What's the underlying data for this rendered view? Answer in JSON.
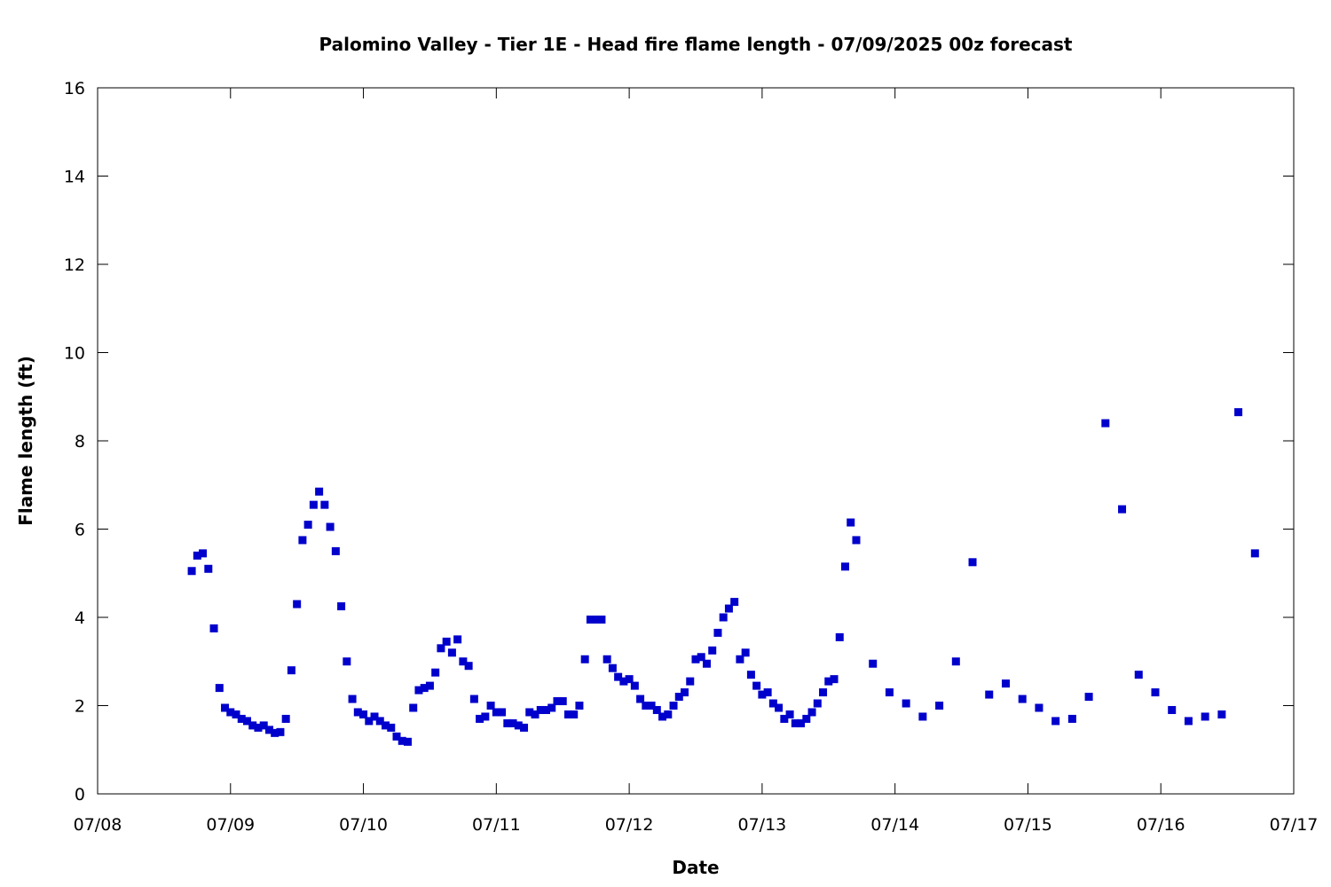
{
  "chart_data": {
    "type": "scatter",
    "title": "Palomino Valley - Tier 1E - Head fire flame length - 07/09/2025 00z forecast",
    "xlabel": "Date",
    "ylabel": "Flame length (ft)",
    "x_axis_type": "date",
    "xlim": [
      "2025-07-08 00:00",
      "2025-07-17 00:00"
    ],
    "ylim": [
      0,
      16
    ],
    "x_tick_labels": [
      "07/08",
      "07/09",
      "07/10",
      "07/11",
      "07/12",
      "07/13",
      "07/14",
      "07/15",
      "07/16",
      "07/17"
    ],
    "y_tick_labels": [
      "0",
      "2",
      "4",
      "6",
      "8",
      "10",
      "12",
      "14",
      "16"
    ],
    "grid": false,
    "legend": "none",
    "marker": "square",
    "color": "#0000CC",
    "series": [
      {
        "x": [
          "2025-07-08 17:00",
          "2025-07-08 18:00",
          "2025-07-08 19:00",
          "2025-07-08 20:00",
          "2025-07-08 21:00",
          "2025-07-08 22:00",
          "2025-07-08 23:00",
          "2025-07-09 00:00",
          "2025-07-09 01:00",
          "2025-07-09 02:00",
          "2025-07-09 03:00",
          "2025-07-09 04:00",
          "2025-07-09 05:00",
          "2025-07-09 06:00",
          "2025-07-09 07:00",
          "2025-07-09 08:00",
          "2025-07-09 09:00",
          "2025-07-09 10:00",
          "2025-07-09 11:00",
          "2025-07-09 12:00",
          "2025-07-09 13:00",
          "2025-07-09 14:00",
          "2025-07-09 15:00",
          "2025-07-09 16:00",
          "2025-07-09 17:00",
          "2025-07-09 18:00",
          "2025-07-09 19:00",
          "2025-07-09 20:00",
          "2025-07-09 21:00",
          "2025-07-09 22:00",
          "2025-07-09 23:00",
          "2025-07-10 00:00",
          "2025-07-10 01:00",
          "2025-07-10 02:00",
          "2025-07-10 03:00",
          "2025-07-10 04:00",
          "2025-07-10 05:00",
          "2025-07-10 06:00",
          "2025-07-10 07:00",
          "2025-07-10 08:00",
          "2025-07-10 09:00",
          "2025-07-10 10:00",
          "2025-07-10 11:00",
          "2025-07-10 12:00",
          "2025-07-10 13:00",
          "2025-07-10 14:00",
          "2025-07-10 15:00",
          "2025-07-10 16:00",
          "2025-07-10 17:00",
          "2025-07-10 18:00",
          "2025-07-10 19:00",
          "2025-07-10 20:00",
          "2025-07-10 21:00",
          "2025-07-10 22:00",
          "2025-07-10 23:00",
          "2025-07-11 00:00",
          "2025-07-11 01:00",
          "2025-07-11 02:00",
          "2025-07-11 03:00",
          "2025-07-11 04:00",
          "2025-07-11 05:00",
          "2025-07-11 06:00",
          "2025-07-11 07:00",
          "2025-07-11 08:00",
          "2025-07-11 09:00",
          "2025-07-11 10:00",
          "2025-07-11 11:00",
          "2025-07-11 12:00",
          "2025-07-11 13:00",
          "2025-07-11 14:00",
          "2025-07-11 15:00",
          "2025-07-11 16:00",
          "2025-07-11 17:00",
          "2025-07-11 18:00",
          "2025-07-11 19:00",
          "2025-07-11 20:00",
          "2025-07-11 21:00",
          "2025-07-11 22:00",
          "2025-07-11 23:00",
          "2025-07-12 00:00",
          "2025-07-12 01:00",
          "2025-07-12 02:00",
          "2025-07-12 03:00",
          "2025-07-12 04:00",
          "2025-07-12 05:00",
          "2025-07-12 06:00",
          "2025-07-12 07:00",
          "2025-07-12 08:00",
          "2025-07-12 09:00",
          "2025-07-12 10:00",
          "2025-07-12 11:00",
          "2025-07-12 12:00",
          "2025-07-12 13:00",
          "2025-07-12 14:00",
          "2025-07-12 15:00",
          "2025-07-12 16:00",
          "2025-07-12 17:00",
          "2025-07-12 18:00",
          "2025-07-12 19:00",
          "2025-07-12 20:00",
          "2025-07-12 21:00",
          "2025-07-12 22:00",
          "2025-07-12 23:00",
          "2025-07-13 00:00",
          "2025-07-13 01:00",
          "2025-07-13 02:00",
          "2025-07-13 03:00",
          "2025-07-13 04:00",
          "2025-07-13 05:00",
          "2025-07-13 06:00",
          "2025-07-13 07:00",
          "2025-07-13 08:00",
          "2025-07-13 09:00",
          "2025-07-13 10:00",
          "2025-07-13 11:00",
          "2025-07-13 12:00",
          "2025-07-13 13:00",
          "2025-07-13 14:00",
          "2025-07-13 15:00",
          "2025-07-13 16:00",
          "2025-07-13 17:00",
          "2025-07-13 20:00",
          "2025-07-13 23:00",
          "2025-07-14 02:00",
          "2025-07-14 05:00",
          "2025-07-14 08:00",
          "2025-07-14 11:00",
          "2025-07-14 14:00",
          "2025-07-14 17:00",
          "2025-07-14 20:00",
          "2025-07-14 23:00",
          "2025-07-15 02:00",
          "2025-07-15 05:00",
          "2025-07-15 08:00",
          "2025-07-15 11:00",
          "2025-07-15 14:00",
          "2025-07-15 17:00",
          "2025-07-15 20:00",
          "2025-07-15 23:00",
          "2025-07-16 02:00",
          "2025-07-16 05:00",
          "2025-07-16 08:00",
          "2025-07-16 11:00",
          "2025-07-16 14:00",
          "2025-07-16 17:00"
        ],
        "y": [
          5.05,
          5.4,
          5.45,
          5.1,
          3.75,
          2.4,
          1.95,
          1.85,
          1.8,
          1.7,
          1.65,
          1.55,
          1.5,
          1.55,
          1.45,
          1.38,
          1.4,
          1.7,
          2.8,
          4.3,
          5.75,
          6.1,
          6.55,
          6.85,
          6.55,
          6.05,
          5.5,
          4.25,
          3.0,
          2.15,
          1.85,
          1.8,
          1.65,
          1.75,
          1.65,
          1.55,
          1.5,
          1.3,
          1.2,
          1.18,
          1.95,
          2.35,
          2.4,
          2.45,
          2.75,
          3.3,
          3.45,
          3.2,
          3.5,
          3.0,
          2.9,
          2.15,
          1.7,
          1.75,
          2.0,
          1.85,
          1.85,
          1.6,
          1.6,
          1.55,
          1.5,
          1.85,
          1.8,
          1.9,
          1.9,
          1.95,
          2.1,
          2.1,
          1.8,
          1.8,
          2.0,
          3.05,
          3.95,
          3.95,
          3.95,
          3.05,
          2.85,
          2.65,
          2.55,
          2.6,
          2.45,
          2.15,
          2.0,
          2.0,
          1.9,
          1.75,
          1.8,
          2.0,
          2.2,
          2.3,
          2.55,
          3.05,
          3.1,
          2.95,
          3.25,
          3.65,
          4.0,
          4.2,
          4.35,
          3.05,
          3.2,
          2.7,
          2.45,
          2.25,
          2.3,
          2.05,
          1.95,
          1.7,
          1.8,
          1.6,
          1.6,
          1.7,
          1.85,
          2.05,
          2.3,
          2.55,
          2.6,
          3.55,
          5.15,
          6.15,
          5.75,
          2.95,
          2.3,
          2.05,
          1.75,
          2.0,
          3.0,
          5.25,
          2.25,
          2.5,
          2.15,
          1.95,
          1.65,
          1.7,
          2.2,
          8.4,
          6.45,
          2.7,
          2.3,
          1.9,
          1.65,
          1.75,
          1.8,
          8.65,
          5.45
        ]
      }
    ]
  }
}
